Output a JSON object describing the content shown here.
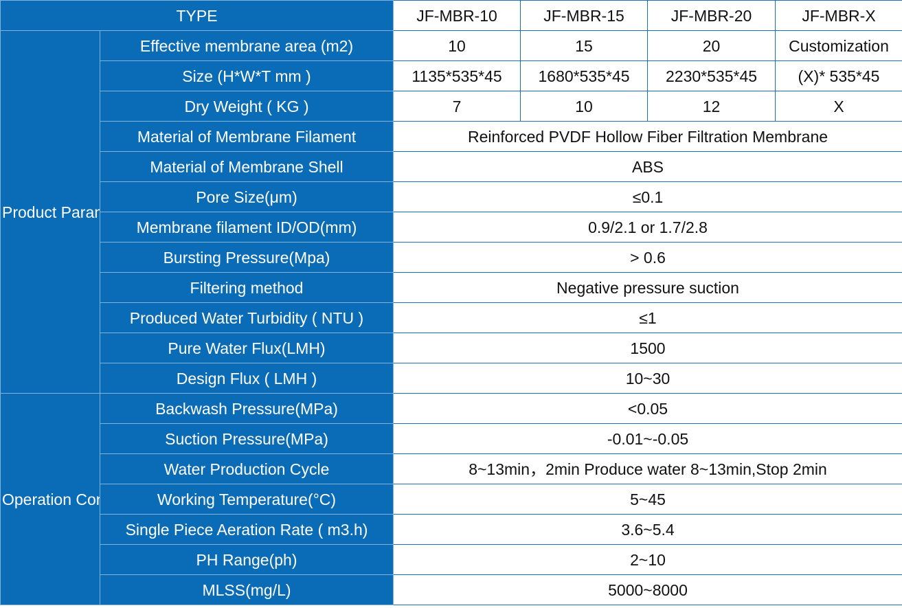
{
  "header": {
    "type_label": "TYPE",
    "models": [
      "JF-MBR-10",
      "JF-MBR-15",
      "JF-MBR-20",
      "JF-MBR-X"
    ]
  },
  "groups": {
    "product_parameters": "Product Parameters",
    "operation_condition": "Operation Condition"
  },
  "rows": {
    "membrane_area": {
      "label": "Effective membrane area (m2)",
      "values": [
        "10",
        "15",
        "20",
        "Customization"
      ]
    },
    "size": {
      "label": "Size (H*W*T mm )",
      "values": [
        "1135*535*45",
        "1680*535*45",
        "2230*535*45",
        "(X)* 535*45"
      ]
    },
    "dry_weight": {
      "label": "Dry Weight ( KG )",
      "values": [
        "7",
        "10",
        "12",
        "X"
      ]
    },
    "filament_material": {
      "label": "Material of Membrane Filament",
      "value": "Reinforced PVDF Hollow Fiber Filtration Membrane"
    },
    "shell_material": {
      "label": "Material of Membrane Shell",
      "value": "ABS"
    },
    "pore_size": {
      "label": "Pore Size(μm)",
      "value": "≤0.1"
    },
    "filament_id_od": {
      "label": "Membrane filament ID/OD(mm)",
      "value": "0.9/2.1 or 1.7/2.8"
    },
    "bursting_pressure": {
      "label": "Bursting Pressure(Mpa)",
      "value": "> 0.6"
    },
    "filtering_method": {
      "label": "Filtering method",
      "value": "Negative pressure suction"
    },
    "turbidity": {
      "label": "Produced Water Turbidity ( NTU )",
      "value": "≤1"
    },
    "pure_water_flux": {
      "label": "Pure Water Flux(LMH)",
      "value": "1500"
    },
    "design_flux": {
      "label": "Design Flux ( LMH )",
      "value": "10~30"
    },
    "backwash_pressure": {
      "label": "Backwash Pressure(MPa)",
      "value": "<0.05"
    },
    "suction_pressure": {
      "label": "Suction Pressure(MPa)",
      "value": "-0.01~-0.05"
    },
    "production_cycle": {
      "label": "Water Production Cycle",
      "value": "8~13min，2min Produce water 8~13min,Stop 2min"
    },
    "working_temperature": {
      "label": "Working Temperature(°C)",
      "value": "5~45"
    },
    "aeration_rate": {
      "label": "Single Piece Aeration Rate ( m3.h)",
      "value": "3.6~5.4"
    },
    "ph_range": {
      "label": "PH Range(ph)",
      "value": "2~10"
    },
    "mlss": {
      "label": "MLSS(mg/L)",
      "value": "5000~8000"
    }
  },
  "colors": {
    "header_blue": "#0a6cb6",
    "border_blue": "#1a6fb5",
    "white": "#ffffff"
  }
}
